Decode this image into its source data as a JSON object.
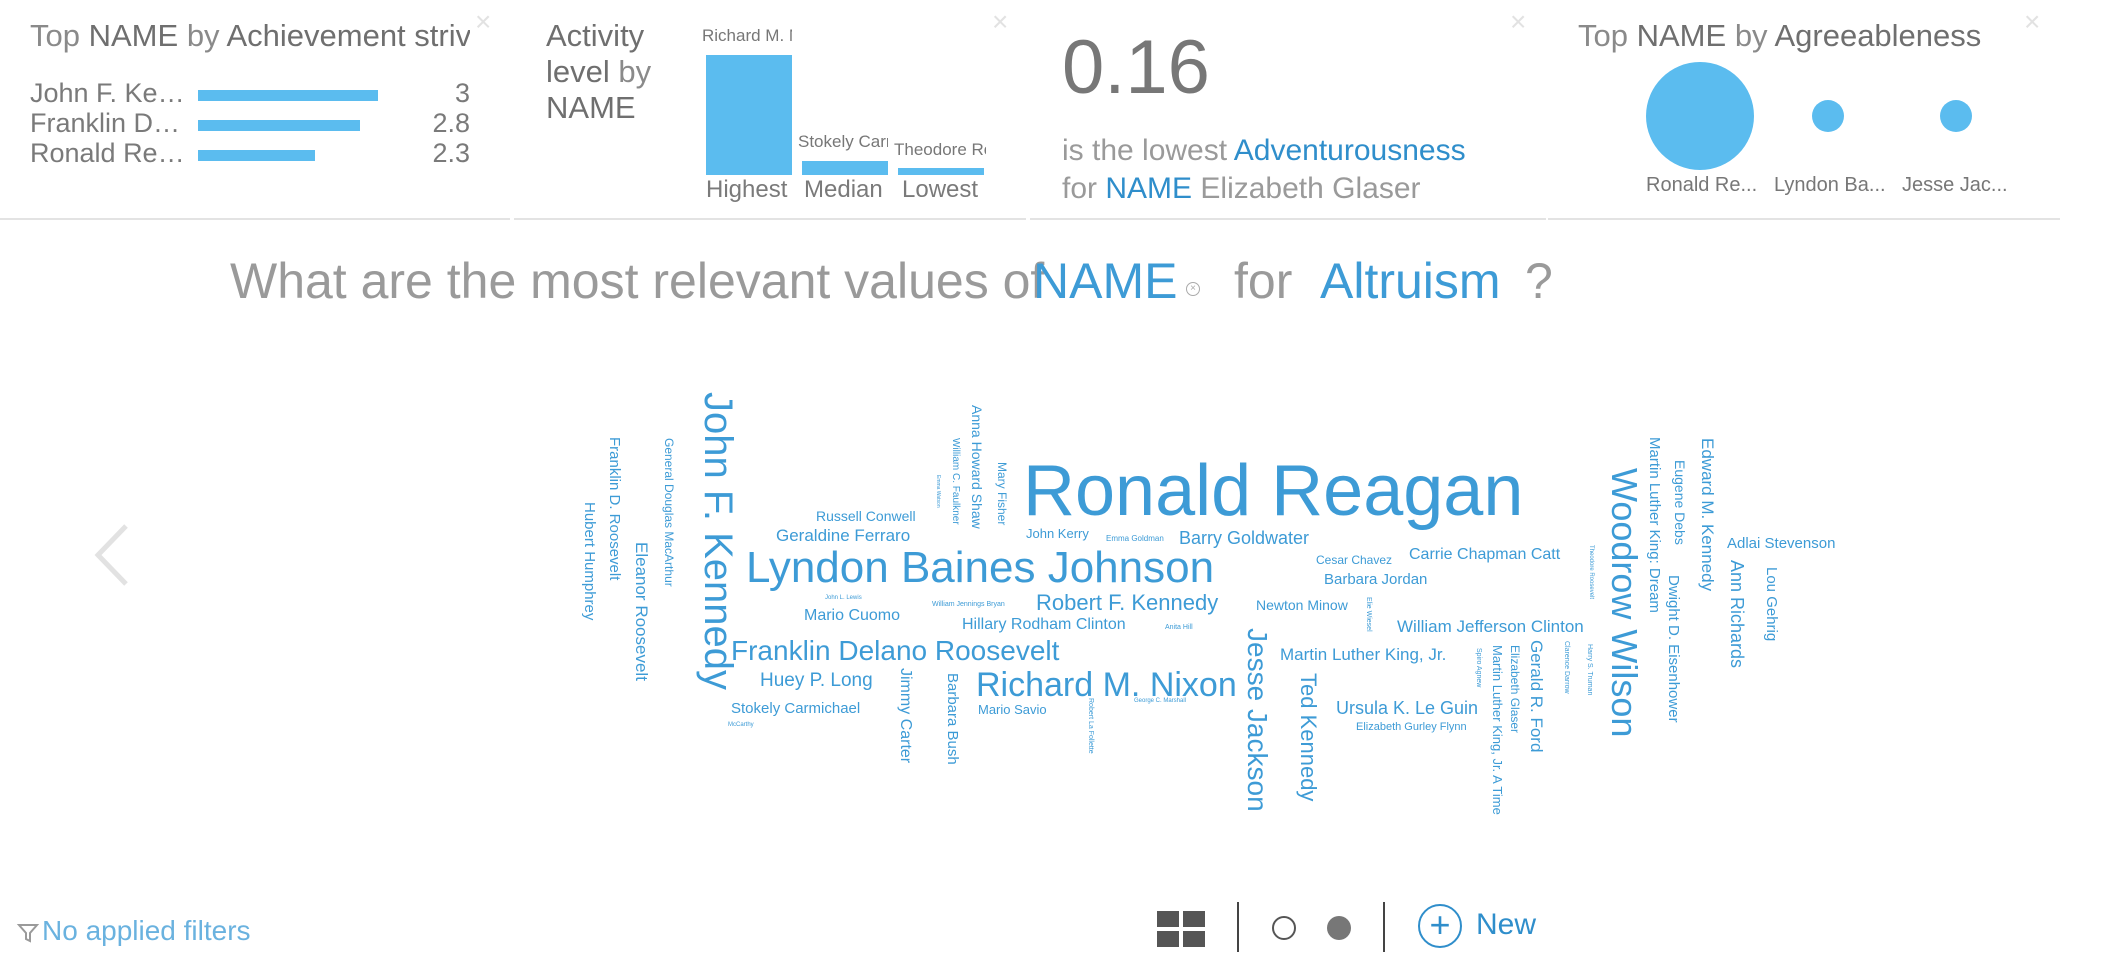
{
  "card1": {
    "title_prefix": "Top",
    "title_field": "NAME",
    "title_by": "by",
    "title_measure": "Achievement strivi",
    "rows": [
      {
        "label": "John F. Ken...",
        "value": "3",
        "ratio": 1.0
      },
      {
        "label": "Franklin Del...",
        "value": "2.8",
        "ratio": 0.9
      },
      {
        "label": "Ronald Rea...",
        "value": "2.3",
        "ratio": 0.65
      }
    ]
  },
  "card2": {
    "title_measure": "Activity level",
    "title_by": "by",
    "title_field": "NAME",
    "bars": [
      {
        "name": "Richard M. N",
        "category": "Highest",
        "ratio": 1.0
      },
      {
        "name": "Stokely Carr",
        "category": "Median",
        "ratio": 0.12
      },
      {
        "name": "Theodore Ro",
        "category": "Lowest",
        "ratio": 0.06
      }
    ]
  },
  "card3": {
    "value": "0.16",
    "line1_prefix": "is the lowest",
    "line1_measure": "Adventurousness",
    "line2_prefix": "for",
    "line2_field": "NAME",
    "line2_value": "Elizabeth Glaser"
  },
  "card4": {
    "title_prefix": "Top",
    "title_field": "NAME",
    "title_by": "by",
    "title_measure": "Agreeableness",
    "bubbles": [
      {
        "label": "Ronald Re...",
        "ratio": 1.0
      },
      {
        "label": "Lyndon Ba...",
        "ratio": 0.3
      },
      {
        "label": "Jesse Jac...",
        "ratio": 0.3
      }
    ]
  },
  "question": {
    "prefix": "What are the most relevant values of",
    "field": "NAME",
    "mid": "for",
    "measure": "Altruism",
    "suffix": "?"
  },
  "cloud_words": [
    {
      "text": "Ronald Reagan"
    },
    {
      "text": "Lyndon Baines Johnson"
    },
    {
      "text": "John F. Kennedy"
    },
    {
      "text": "Woodrow Wilson"
    },
    {
      "text": "Richard M. Nixon"
    },
    {
      "text": "Franklin Delano Roosevelt"
    },
    {
      "text": "Jesse Jackson"
    },
    {
      "text": "Ted Kennedy"
    },
    {
      "text": "Robert F. Kennedy"
    },
    {
      "text": "Barry Goldwater"
    },
    {
      "text": "Geraldine Ferraro"
    },
    {
      "text": "Russell Conwell"
    },
    {
      "text": "John Kerry"
    },
    {
      "text": "Emma Goldman"
    },
    {
      "text": "Carrie Chapman Catt"
    },
    {
      "text": "Cesar Chavez"
    },
    {
      "text": "Barbara Jordan"
    },
    {
      "text": "Newton Minow"
    },
    {
      "text": "Mario Cuomo"
    },
    {
      "text": "John L. Lewis"
    },
    {
      "text": "William Jennings Bryan"
    },
    {
      "text": "Hillary Rodham Clinton"
    },
    {
      "text": "Anita Hill"
    },
    {
      "text": "William Jefferson Clinton"
    },
    {
      "text": "Martin Luther King, Jr."
    },
    {
      "text": "Huey P. Long"
    },
    {
      "text": "Ursula K. Le Guin"
    },
    {
      "text": "Elizabeth Gurley Flynn"
    },
    {
      "text": "Stokely Carmichael"
    },
    {
      "text": "McCarthy"
    },
    {
      "text": "Mario Savio"
    },
    {
      "text": "George C. Marshall"
    },
    {
      "text": "Adlai Stevenson"
    },
    {
      "text": "Franklin D. Roosevelt"
    },
    {
      "text": "Hubert Humphrey"
    },
    {
      "text": "Eleanor Roosevelt"
    },
    {
      "text": "General Douglas MacArthur"
    },
    {
      "text": "Anna Howard Shaw"
    },
    {
      "text": "William C. Faulkner"
    },
    {
      "text": "Mary Fisher"
    },
    {
      "text": "Jimmy Carter"
    },
    {
      "text": "Barbara Bush"
    },
    {
      "text": "Robert La Follette"
    },
    {
      "text": "Gerald R. Ford"
    },
    {
      "text": "Elizabeth Glaser"
    },
    {
      "text": "Martin Luther King, Jr. A Time"
    },
    {
      "text": "Martin Luther King: Dream"
    },
    {
      "text": "Eugene Debs"
    },
    {
      "text": "Dwight D. Eisenhower"
    },
    {
      "text": "Edward M. Kennedy"
    },
    {
      "text": "Ann Richards"
    },
    {
      "text": "Lou Gehrig"
    },
    {
      "text": "Elie Wiesel"
    },
    {
      "text": "Spiro Agnew"
    },
    {
      "text": "Clarence Darrow"
    },
    {
      "text": "Harry S. Truman"
    },
    {
      "text": "Theodore Roosevelt"
    },
    {
      "text": "Emma Watson"
    }
  ],
  "footer": {
    "filters_label": "No applied filters",
    "new_label": "New",
    "plus_symbol": "+"
  },
  "colors": {
    "accent": "#3d9bd6",
    "bar": "#5bbcef",
    "muted": "#8a8a8a"
  },
  "icons": [
    "close-icon",
    "chevron-left-icon",
    "filter-icon",
    "grid-view-icon",
    "plus-circle-icon"
  ]
}
